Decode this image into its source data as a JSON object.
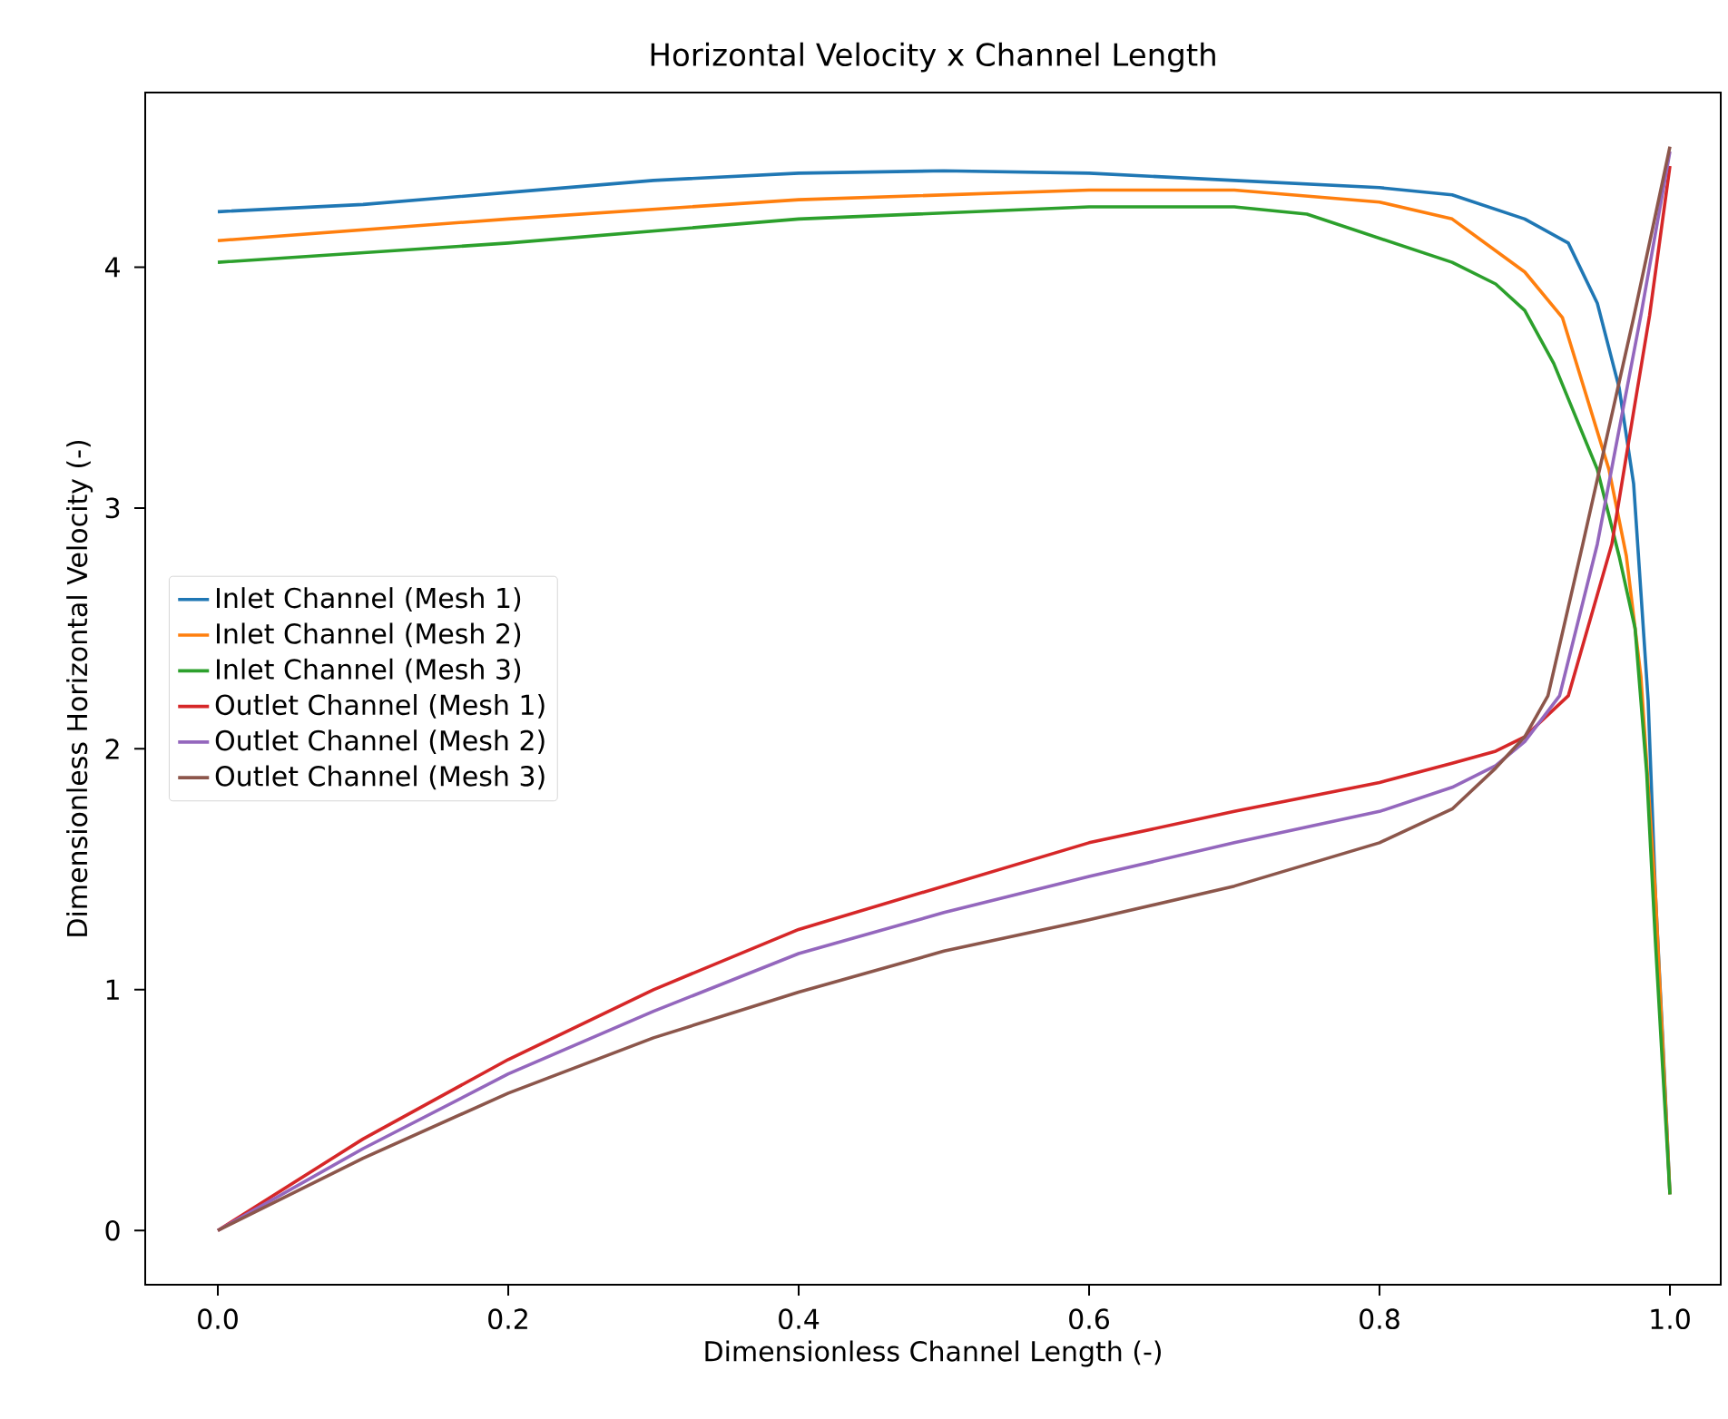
{
  "chart_data": {
    "type": "line",
    "title": "Horizontal Velocity x Channel Length",
    "xlabel": "Dimensionless Channel Length (-)",
    "ylabel": "Dimensionless Horizontal Velocity (-)",
    "xlim": [
      -0.05,
      1.035
    ],
    "ylim": [
      -0.225,
      4.725
    ],
    "xticks": [
      {
        "value": 0,
        "label": "0.0"
      },
      0.2,
      0.4,
      0.6,
      0.8,
      {
        "value": 1,
        "label": "1.0"
      }
    ],
    "yticks": [
      0,
      1,
      2,
      3,
      4
    ],
    "grid": false,
    "legend": "left",
    "marker": "none",
    "line_style": "solid",
    "series": [
      {
        "name": "Inlet Channel (Mesh 1)",
        "color": "#1f77b4",
        "x": [
          0,
          0.1,
          0.2,
          0.3,
          0.4,
          0.5,
          0.6,
          0.7,
          0.8,
          0.85,
          0.9,
          0.93,
          0.95,
          0.965,
          0.975,
          0.985,
          0.99,
          0.995,
          1.0
        ],
        "values": [
          4.23,
          4.26,
          4.31,
          4.36,
          4.39,
          4.4,
          4.39,
          4.36,
          4.33,
          4.3,
          4.2,
          4.1,
          3.85,
          3.5,
          3.1,
          2.2,
          1.4,
          0.8,
          0.15
        ]
      },
      {
        "name": "Inlet Channel (Mesh 2)",
        "color": "#ff7f0e",
        "x": [
          0,
          0.2,
          0.4,
          0.6,
          0.7,
          0.8,
          0.85,
          0.9,
          0.926,
          0.958,
          0.97,
          0.98,
          0.99,
          1.0
        ],
        "values": [
          4.11,
          4.2,
          4.28,
          4.32,
          4.32,
          4.27,
          4.2,
          3.98,
          3.79,
          3.16,
          2.8,
          2.3,
          1.4,
          0.15
        ]
      },
      {
        "name": "Inlet Channel (Mesh 3)",
        "color": "#2ca02c",
        "x": [
          0,
          0.2,
          0.4,
          0.6,
          0.7,
          0.75,
          0.8,
          0.85,
          0.88,
          0.9,
          0.92,
          0.95,
          0.965,
          0.976,
          0.984,
          0.99,
          1.0
        ],
        "values": [
          4.02,
          4.1,
          4.2,
          4.25,
          4.25,
          4.22,
          4.12,
          4.02,
          3.93,
          3.82,
          3.6,
          3.16,
          2.8,
          2.5,
          1.9,
          1.2,
          0.15
        ]
      },
      {
        "name": "Outlet Channel (Mesh 1)",
        "color": "#d62728",
        "x": [
          0,
          0.1,
          0.2,
          0.3,
          0.4,
          0.5,
          0.6,
          0.7,
          0.8,
          0.85,
          0.88,
          0.9,
          0.93,
          0.96,
          0.975,
          0.986,
          1.0
        ],
        "values": [
          0,
          0.38,
          0.71,
          1.0,
          1.25,
          1.43,
          1.61,
          1.74,
          1.86,
          1.94,
          1.99,
          2.05,
          2.22,
          2.85,
          3.4,
          3.8,
          4.42
        ]
      },
      {
        "name": "Outlet Channel (Mesh 2)",
        "color": "#9467bd",
        "x": [
          0,
          0.1,
          0.2,
          0.3,
          0.4,
          0.5,
          0.6,
          0.7,
          0.8,
          0.85,
          0.88,
          0.9,
          0.924,
          0.95,
          0.98,
          1.0
        ],
        "values": [
          0,
          0.34,
          0.65,
          0.91,
          1.15,
          1.32,
          1.47,
          1.61,
          1.74,
          1.84,
          1.93,
          2.03,
          2.22,
          2.85,
          3.8,
          4.48
        ]
      },
      {
        "name": "Outlet Channel (Mesh 3)",
        "color": "#8c564b",
        "x": [
          0,
          0.1,
          0.2,
          0.3,
          0.4,
          0.5,
          0.6,
          0.7,
          0.8,
          0.85,
          0.88,
          0.9,
          0.916,
          0.94,
          0.975,
          1.0
        ],
        "values": [
          0,
          0.3,
          0.57,
          0.8,
          0.99,
          1.16,
          1.29,
          1.43,
          1.61,
          1.75,
          1.92,
          2.05,
          2.22,
          2.85,
          3.79,
          4.5
        ]
      }
    ]
  }
}
